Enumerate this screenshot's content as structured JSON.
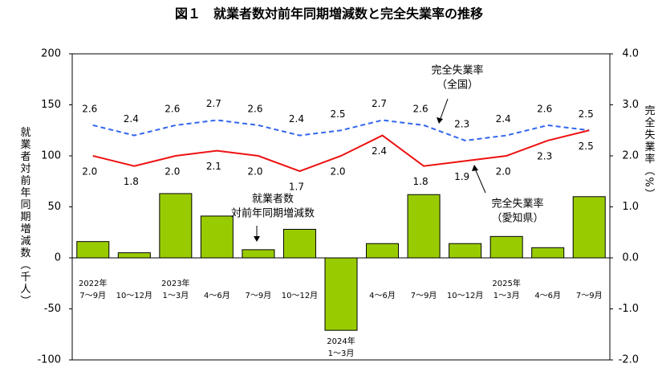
{
  "chart_data": {
    "type": "bar-line",
    "title": "図１　就業者数対前年同期増減数と完全失業率の推移",
    "category_years": [
      "2022年",
      null,
      "2023年",
      null,
      null,
      null,
      "2024年",
      null,
      null,
      null,
      "2025年",
      null,
      null
    ],
    "categories": [
      "7～9月",
      "10～12月",
      "1～3月",
      "4～6月",
      "7～9月",
      "10～12月",
      "1～3月",
      "4～6月",
      "7～9月",
      "10～12月",
      "1～3月",
      "4～6月",
      "7～9月"
    ],
    "ylabel": "就業者対前年同期増減数（千人）",
    "y2label": "完全失業率（%）",
    "ylim": [
      -100,
      200
    ],
    "yticks": [
      -100,
      -50,
      0,
      50,
      100,
      150,
      200
    ],
    "y2lim": [
      -2,
      4
    ],
    "y2ticks": [
      {
        "value": -2,
        "label": "-2.0"
      },
      {
        "value": -1,
        "label": "-1.0"
      },
      {
        "value": 0,
        "label": "0.0"
      },
      {
        "value": 1,
        "label": "1.0"
      },
      {
        "value": 2,
        "label": "2.0"
      },
      {
        "value": 3,
        "label": "3.0"
      },
      {
        "value": 4,
        "label": "4.0"
      }
    ],
    "series": [
      {
        "label_lines": [
          "就業者数",
          "対前年同期増減数"
        ],
        "type": "bar",
        "color": "#99cc00",
        "values": [
          16,
          5,
          63,
          41,
          8,
          28,
          -71,
          14,
          62,
          14,
          21,
          10,
          60
        ]
      },
      {
        "label_lines": [
          "完全失業率",
          "（全国）"
        ],
        "type": "line",
        "axis": "y2",
        "color": "#3366ee",
        "dashed": true,
        "values": [
          2.6,
          2.4,
          2.6,
          2.7,
          2.6,
          2.4,
          2.5,
          2.7,
          2.6,
          2.3,
          2.4,
          2.6,
          2.5
        ],
        "value_labels": [
          "2.6",
          "2.4",
          "2.6",
          "2.7",
          "2.6",
          "2.4",
          "2.5",
          "2.7",
          "2.6",
          "2.3",
          "2.4",
          "2.6",
          "2.5"
        ]
      },
      {
        "label_lines": [
          "完全失業率",
          "（愛知県）"
        ],
        "type": "line",
        "axis": "y2",
        "color": "#ee1111",
        "dashed": false,
        "values": [
          2.0,
          1.8,
          2.0,
          2.1,
          2.0,
          1.7,
          2.0,
          2.4,
          1.8,
          1.9,
          2.0,
          2.3,
          2.5
        ],
        "value_labels": [
          "2.0",
          "1.8",
          "2.0",
          "2.1",
          "2.0",
          "1.7",
          "2.0",
          "2.4",
          "1.8",
          "1.9",
          "2.0",
          "2.3",
          "2.5"
        ]
      }
    ]
  }
}
